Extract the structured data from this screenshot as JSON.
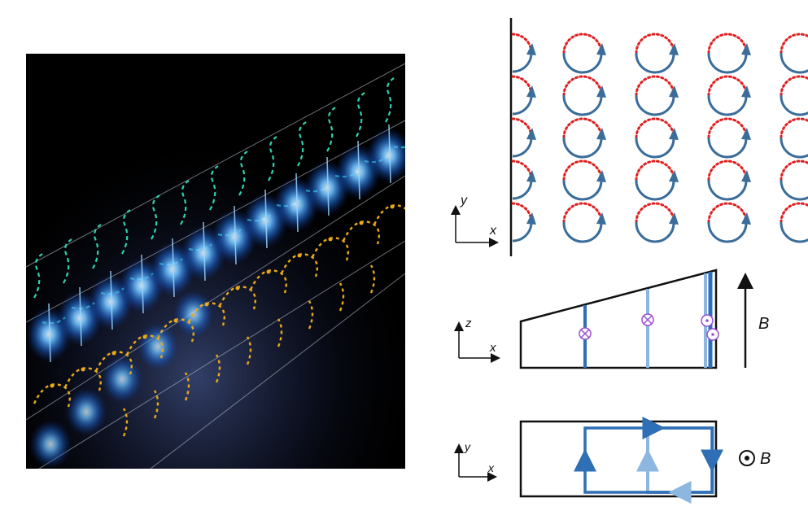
{
  "colors": {
    "loop_solid": "#3a6d9a",
    "loop_dotted": "#e02020",
    "stripe_dark": "#2f6fb5",
    "stripe_light": "#8db7e0",
    "marker_ring": "#9a4fd0",
    "axes": "#111111",
    "teal_arrows": "#2fd3b0",
    "gold_arrows": "#e9a91a",
    "glow_blue": "#2b8cff"
  },
  "icons": {
    "field_out_symbol": "circle-dot-icon",
    "current_in": "circle-cross-icon",
    "current_out": "circle-dot-icon",
    "loop_arrow": "circular-arrow-icon"
  },
  "panel_a": {
    "axes": {
      "vertical": "y",
      "horizontal": "x"
    },
    "grid": {
      "rows": 5,
      "columns": 4,
      "edge_column": true
    }
  },
  "panel_b": {
    "axes": {
      "vertical": "z",
      "horizontal": "x"
    },
    "field_label": "B"
  },
  "panel_c": {
    "axes": {
      "vertical": "y",
      "horizontal": "x"
    },
    "field_label": "B"
  }
}
